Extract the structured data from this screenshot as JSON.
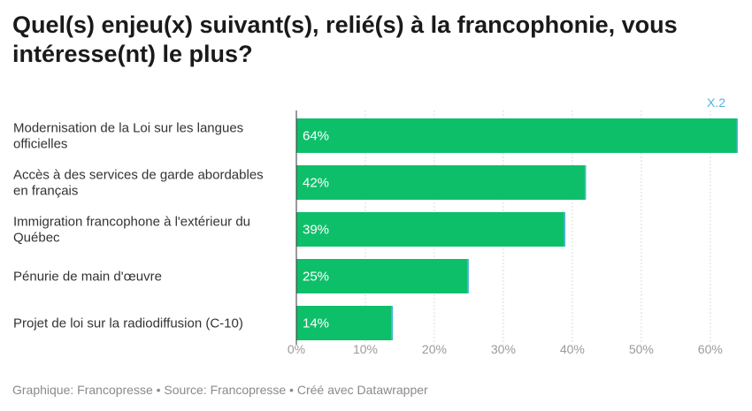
{
  "title": "Quel(s) enjeu(x) suivant(s), relié(s) à la francophonie, vous intéresse(nt) le plus?",
  "footer": "Graphique: Francopresse • Source: Francopresse • Créé avec Datawrapper",
  "chart_data": {
    "type": "bar",
    "orientation": "horizontal",
    "title": "Quel(s) enjeu(x) suivant(s), relié(s) à la francophonie, vous intéresse(nt) le plus?",
    "categories": [
      [
        "Modernisation de la Loi sur les langues",
        "officielles"
      ],
      [
        "Accès à des services de garde abordables",
        "en français"
      ],
      [
        "Immigration francophone à l'extérieur du",
        "Québec"
      ],
      [
        "Pénurie de main d'œuvre"
      ],
      [
        "Projet de loi sur la radiodiffusion (C-10)"
      ]
    ],
    "values": [
      64,
      42,
      39,
      25,
      14
    ],
    "value_labels": [
      "64%",
      "42%",
      "39%",
      "25%",
      "14%"
    ],
    "series_name": "X.2",
    "xlim": [
      0,
      64
    ],
    "xticks": [
      0,
      10,
      20,
      30,
      40,
      50,
      60
    ],
    "xtick_labels": [
      "0%",
      "10%",
      "20%",
      "30%",
      "40%",
      "50%",
      "60%"
    ],
    "grid": true,
    "bar_color": "#0ebf6a",
    "bar_edge_color": "#4fb3df",
    "series_label_color": "#4fb3df"
  }
}
